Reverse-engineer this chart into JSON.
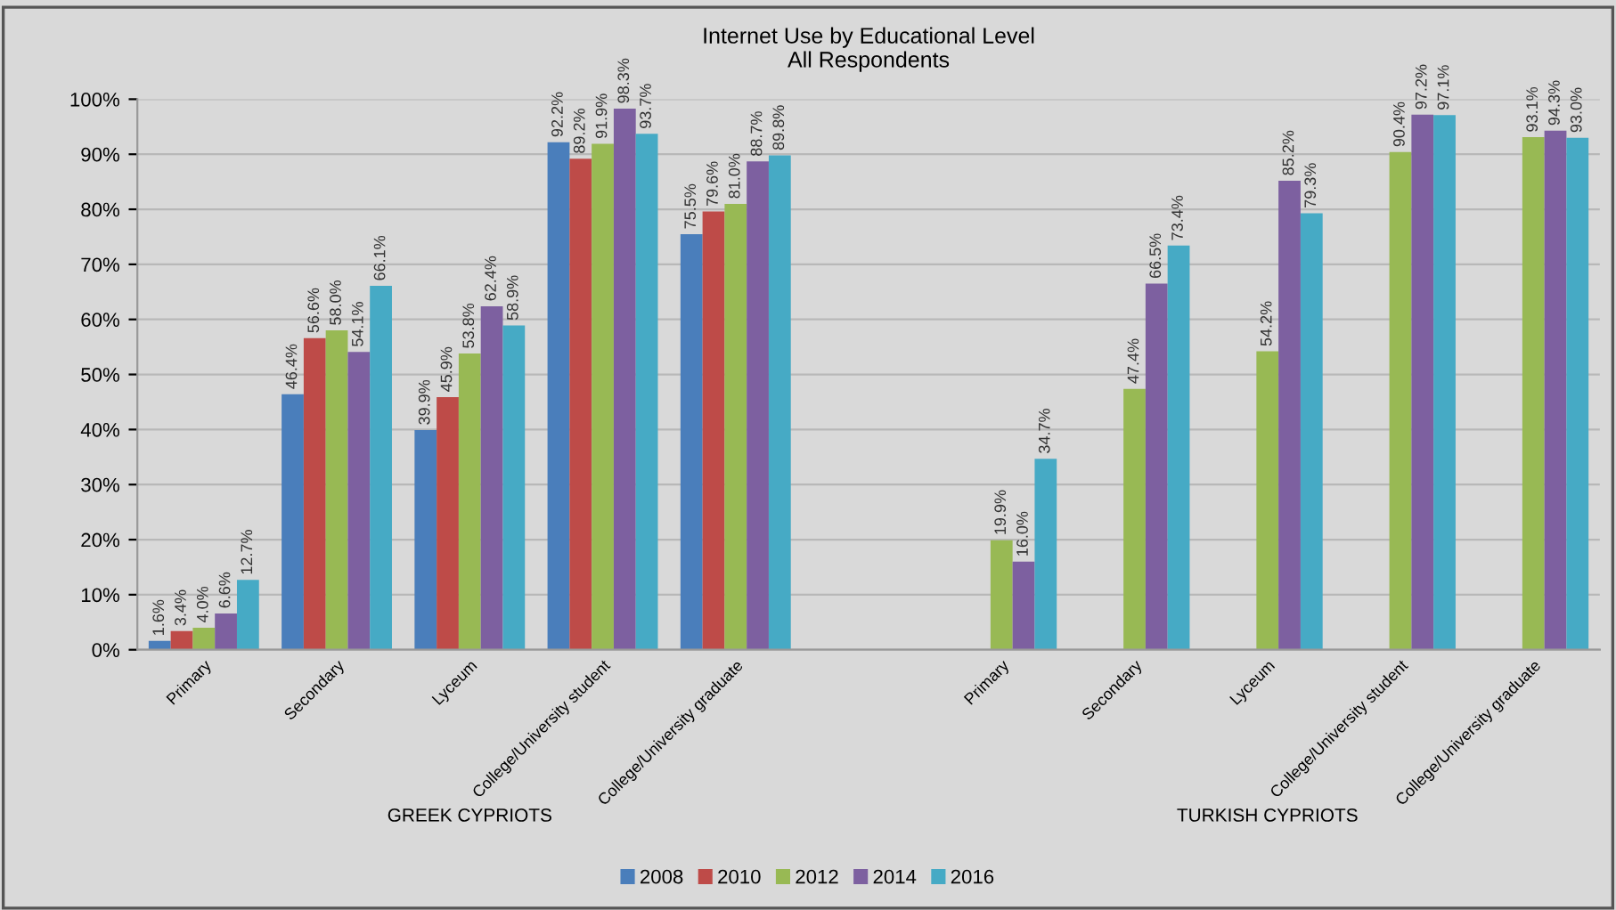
{
  "chart_data": {
    "type": "bar",
    "title": "Internet Use by Educational Level\nAll Respondents",
    "categories": [
      "Primary",
      "Secondary",
      "Lyceum",
      "College/University student",
      "College/University graduate",
      null,
      "Primary",
      "Secondary",
      "Lyceum",
      "College/University student",
      "College/University graduate"
    ],
    "series": [
      {
        "name": "2008",
        "color": "#4a7ebb",
        "values": [
          1.6,
          46.4,
          39.9,
          92.2,
          75.5,
          null,
          null,
          null,
          null,
          null,
          null
        ],
        "value_labels": [
          "1.6%",
          "46.4%",
          "39.9%",
          "92.2%",
          "75.5%",
          null,
          null,
          null,
          null,
          null,
          null
        ]
      },
      {
        "name": "2010",
        "color": "#be4b48",
        "values": [
          3.4,
          56.6,
          45.9,
          89.2,
          79.6,
          null,
          null,
          null,
          null,
          null,
          null
        ],
        "value_labels": [
          "3.4%",
          "56.6%",
          "45.9%",
          "89.2%",
          "79.6%",
          null,
          null,
          null,
          null,
          null,
          null
        ]
      },
      {
        "name": "2012",
        "color": "#98b954",
        "values": [
          4.0,
          58.0,
          53.8,
          91.9,
          81.0,
          null,
          19.9,
          47.4,
          54.2,
          90.4,
          93.1
        ],
        "value_labels": [
          "4.0%",
          "58.0%",
          "53.8%",
          "91.9%",
          "81.0%",
          null,
          "19.9%",
          "47.4%",
          "54.2%",
          "90.4%",
          "93.1%"
        ]
      },
      {
        "name": "2014",
        "color": "#7d60a0",
        "values": [
          6.6,
          54.1,
          62.4,
          98.3,
          88.7,
          null,
          16.0,
          66.5,
          85.2,
          97.2,
          94.3
        ],
        "value_labels": [
          "6.6%",
          "54.1%",
          "62.4%",
          "98.3%",
          "88.7%",
          null,
          "16.0%",
          "66.5%",
          "85.2%",
          "97.2%",
          "94.3%"
        ]
      },
      {
        "name": "2016",
        "color": "#46aac5",
        "values": [
          12.7,
          66.1,
          58.9,
          93.7,
          89.8,
          null,
          34.7,
          73.4,
          79.3,
          97.1,
          93.0
        ],
        "value_labels": [
          "12.7%",
          "66.1%",
          "58.9%",
          "93.7%",
          "89.8%",
          null,
          "34.7%",
          "73.4%",
          "79.3%",
          "97.1%",
          "93.0%"
        ]
      }
    ],
    "ylim": [
      0,
      100
    ],
    "yticks": [
      {
        "value": 0,
        "label": "0%"
      },
      {
        "value": 10,
        "label": "10%"
      },
      {
        "value": 20,
        "label": "20%"
      },
      {
        "value": 30,
        "label": "30%"
      },
      {
        "value": 40,
        "label": "40%"
      },
      {
        "value": 50,
        "label": "50%"
      },
      {
        "value": 60,
        "label": "60%"
      },
      {
        "value": 70,
        "label": "70%"
      },
      {
        "value": 80,
        "label": "80%"
      },
      {
        "value": 90,
        "label": "90%"
      },
      {
        "value": 100,
        "label": "100%"
      }
    ],
    "grid": "y",
    "legend": "bottom",
    "annotations": [
      "GREEK CYPRIOTS",
      "TURKISH CYPRIOTS"
    ]
  }
}
